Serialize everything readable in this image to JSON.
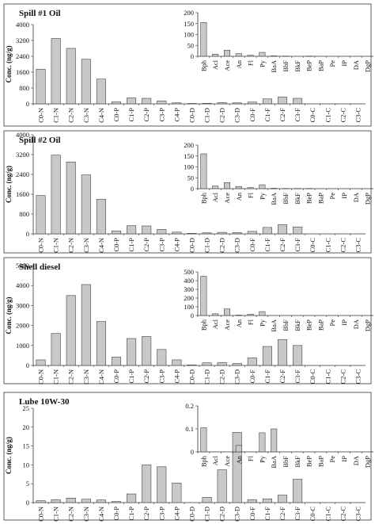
{
  "chart_data": [
    {
      "type": "bar",
      "title": "Spill #1 Oil",
      "ylabel": "Conc. (ng/g)",
      "ylim": [
        0,
        4000
      ],
      "yticks": [
        0,
        800,
        1600,
        2400,
        3200,
        4000
      ],
      "categories": [
        "C0-N",
        "C1-N",
        "C2-N",
        "C3-N",
        "C4-N",
        "C0-P",
        "C1-P",
        "C2-P",
        "C3-P",
        "C4-P",
        "C0-D",
        "C1-D",
        "C2-D",
        "C3-D",
        "C0-F",
        "C1-F",
        "C2-F",
        "C3-F",
        "C0-C",
        "C1-C",
        "C2-C",
        "C3-C"
      ],
      "values": [
        1750,
        3300,
        2800,
        2250,
        1250,
        100,
        300,
        280,
        150,
        50,
        20,
        30,
        60,
        50,
        90,
        250,
        350,
        280,
        0,
        0,
        0,
        0
      ],
      "inset": {
        "type": "bar",
        "ylim": [
          0,
          200
        ],
        "yticks": [
          0,
          50,
          100,
          150,
          200
        ],
        "categories": [
          "Bph",
          "Acl",
          "Ace",
          "An",
          "Fl",
          "Py",
          "BaA",
          "BbF",
          "BkF",
          "BeP",
          "BaP",
          "Pe",
          "IP",
          "DA",
          "DgP"
        ],
        "values": [
          155,
          10,
          28,
          12,
          5,
          18,
          2,
          1,
          0,
          1,
          0,
          0,
          0,
          0,
          0
        ]
      }
    },
    {
      "type": "bar",
      "title": "Spill #2 Oil",
      "ylabel": "Conc. (ng/g)",
      "ylim": [
        0,
        4000
      ],
      "yticks": [
        0,
        800,
        1600,
        2400,
        3200,
        4000
      ],
      "categories": [
        "C0-N",
        "C1-N",
        "C2-N",
        "C3-N",
        "C4-N",
        "C0-P",
        "C1-P",
        "C2-P",
        "C3-P",
        "C4-P",
        "C0-D",
        "C1-D",
        "C2-D",
        "C3-D",
        "C0-F",
        "C1-F",
        "C2-F",
        "C3-F",
        "C0-C",
        "C1-C",
        "C2-C",
        "C3-C"
      ],
      "values": [
        1550,
        3180,
        2900,
        2380,
        1400,
        120,
        330,
        320,
        180,
        70,
        20,
        40,
        60,
        50,
        100,
        260,
        370,
        280,
        0,
        0,
        0,
        0
      ],
      "inset": {
        "type": "bar",
        "ylim": [
          0,
          200
        ],
        "yticks": [
          0,
          50,
          100,
          150,
          200
        ],
        "categories": [
          "Bph",
          "Acl",
          "Ace",
          "An",
          "Fl",
          "Py",
          "BaA",
          "BbF",
          "BkF",
          "BeP",
          "BaP",
          "Pe",
          "IP",
          "DA",
          "DgP"
        ],
        "values": [
          160,
          12,
          28,
          10,
          5,
          18,
          2,
          1,
          1,
          1,
          0,
          0,
          0,
          0,
          0
        ]
      }
    },
    {
      "type": "bar",
      "title": "Shell diesel",
      "ylabel": "Conc. (ng/g)",
      "ylim": [
        0,
        5000
      ],
      "yticks": [
        0,
        1000,
        2000,
        3000,
        4000,
        5000
      ],
      "categories": [
        "C0-N",
        "C1-N",
        "C2-N",
        "C3-N",
        "C4-N",
        "C0-P",
        "C1-P",
        "C2-P",
        "C3-P",
        "C4-P",
        "C0-D",
        "C1-D",
        "C2-D",
        "C3-D",
        "C0-F",
        "C1-F",
        "C2-F",
        "C3-F",
        "C0-C",
        "C1-C",
        "C2-C",
        "C3-C"
      ],
      "values": [
        280,
        1600,
        3500,
        4050,
        2200,
        420,
        1350,
        1450,
        800,
        280,
        30,
        130,
        150,
        100,
        380,
        950,
        1300,
        1000,
        0,
        0,
        0,
        0
      ],
      "inset": {
        "type": "bar",
        "ylim": [
          0,
          500
        ],
        "yticks": [
          0,
          100,
          200,
          300,
          400,
          500
        ],
        "categories": [
          "Bph",
          "Acl",
          "Ace",
          "An",
          "Fl",
          "Py",
          "BaA",
          "BbF",
          "BkF",
          "BeP",
          "BaP",
          "Pe",
          "IP",
          "DA",
          "DgP"
        ],
        "values": [
          450,
          20,
          75,
          5,
          15,
          45,
          0,
          0,
          0,
          0,
          0,
          0,
          0,
          0,
          0
        ]
      }
    },
    {
      "type": "bar",
      "title": "Lube 10W-30",
      "ylabel": "Conc. (ng/g)",
      "ylim": [
        0,
        25
      ],
      "yticks": [
        0,
        5,
        10,
        15,
        20,
        25
      ],
      "categories": [
        "C0-N",
        "C1-N",
        "C2-N",
        "C3-N",
        "C4-N",
        "C0-P",
        "C1-P",
        "C2-P",
        "C3-P",
        "C4-P",
        "C0-D",
        "C1-D",
        "C2-D",
        "C3-D",
        "C0-F",
        "C1-F",
        "C2-F",
        "C3-F",
        "C0-C",
        "C1-C",
        "C2-C",
        "C3-C"
      ],
      "values": [
        0.5,
        0.8,
        1.2,
        0.9,
        0.7,
        0.3,
        2.3,
        10,
        9.5,
        5.2,
        0,
        1.4,
        8.7,
        18.6,
        0.8,
        1.0,
        2.0,
        6.2,
        0,
        0,
        0,
        0
      ],
      "inset": {
        "type": "bar",
        "ylim": [
          0,
          0.2
        ],
        "yticks": [
          0,
          0.1,
          0.2
        ],
        "categories": [
          "Bph",
          "Acl",
          "Ace",
          "An",
          "Fl",
          "Py",
          "BaA",
          "BbF",
          "BkF",
          "BeP",
          "BaP",
          "Pe",
          "IP",
          "DA",
          "DgP"
        ],
        "values": [
          0.105,
          0,
          0,
          0.028,
          0,
          0.083,
          0.1,
          0,
          0,
          0,
          0,
          0,
          0,
          0,
          0
        ]
      }
    }
  ]
}
